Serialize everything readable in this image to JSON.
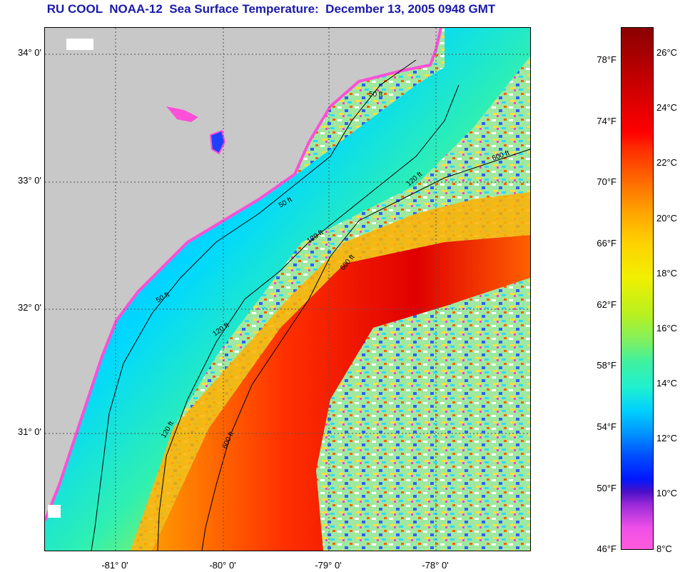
{
  "title": "RU COOL  NOAA-12  Sea Surface Temperature:  December 13, 2005 0948 GMT",
  "map": {
    "lat_labels": [
      "34° 0'",
      "33° 0'",
      "32° 0'",
      "31° 0'"
    ],
    "lon_labels": [
      "-81° 0'",
      "-80° 0'",
      "-79° 0'",
      "-78° 0'"
    ],
    "contour_labels": {
      "c50": "50 ft",
      "c120": "120 ft",
      "c600": "600 ft"
    },
    "colors": {
      "land": "#c8c8c8",
      "cloud": "#ffffff",
      "coast": "#ff50d8"
    }
  },
  "colorbar": {
    "celsius": [
      "26°C",
      "24°C",
      "22°C",
      "20°C",
      "18°C",
      "16°C",
      "14°C",
      "12°C",
      "10°C",
      "8°C"
    ],
    "fahrenheit": [
      "78°F",
      "74°F",
      "70°F",
      "66°F",
      "62°F",
      "58°F",
      "54°F",
      "50°F",
      "46°F"
    ]
  }
}
